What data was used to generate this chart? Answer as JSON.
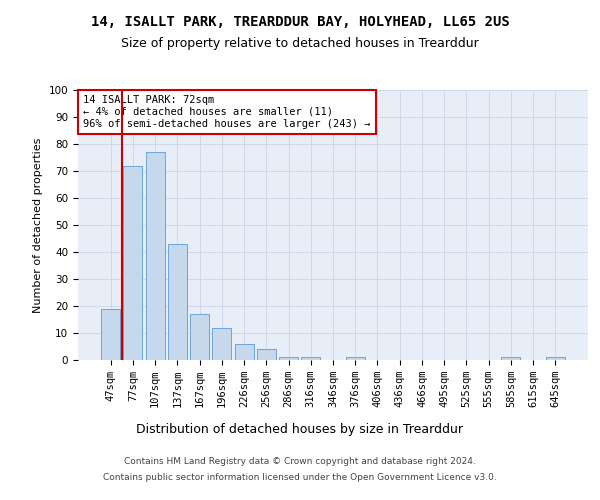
{
  "title": "14, ISALLT PARK, TREARDDUR BAY, HOLYHEAD, LL65 2US",
  "subtitle": "Size of property relative to detached houses in Trearddur",
  "xlabel": "Distribution of detached houses by size in Trearddur",
  "ylabel": "Number of detached properties",
  "bar_labels": [
    "47sqm",
    "77sqm",
    "107sqm",
    "137sqm",
    "167sqm",
    "196sqm",
    "226sqm",
    "256sqm",
    "286sqm",
    "316sqm",
    "346sqm",
    "376sqm",
    "406sqm",
    "436sqm",
    "466sqm",
    "495sqm",
    "525sqm",
    "555sqm",
    "585sqm",
    "615sqm",
    "645sqm"
  ],
  "bar_values": [
    19,
    72,
    77,
    43,
    17,
    12,
    6,
    4,
    1,
    1,
    0,
    1,
    0,
    0,
    0,
    0,
    0,
    0,
    1,
    0,
    1
  ],
  "bar_color": "#c6d9ec",
  "bar_edge_color": "#5b9bd5",
  "marker_bar_index": 1,
  "marker_color": "#cc0000",
  "annotation_line1": "14 ISALLT PARK: 72sqm",
  "annotation_line2": "← 4% of detached houses are smaller (11)",
  "annotation_line3": "96% of semi-detached houses are larger (243) →",
  "annotation_box_color": "#ffffff",
  "annotation_border_color": "#cc0000",
  "ylim": [
    0,
    100
  ],
  "yticks": [
    0,
    10,
    20,
    30,
    40,
    50,
    60,
    70,
    80,
    90,
    100
  ],
  "grid_color": "#d0d8e8",
  "bg_color": "#e8eef8",
  "footer_line1": "Contains HM Land Registry data © Crown copyright and database right 2024.",
  "footer_line2": "Contains public sector information licensed under the Open Government Licence v3.0.",
  "title_fontsize": 10,
  "subtitle_fontsize": 9,
  "xlabel_fontsize": 9,
  "ylabel_fontsize": 8,
  "tick_fontsize": 7.5,
  "annotation_fontsize": 7.5,
  "footer_fontsize": 6.5
}
